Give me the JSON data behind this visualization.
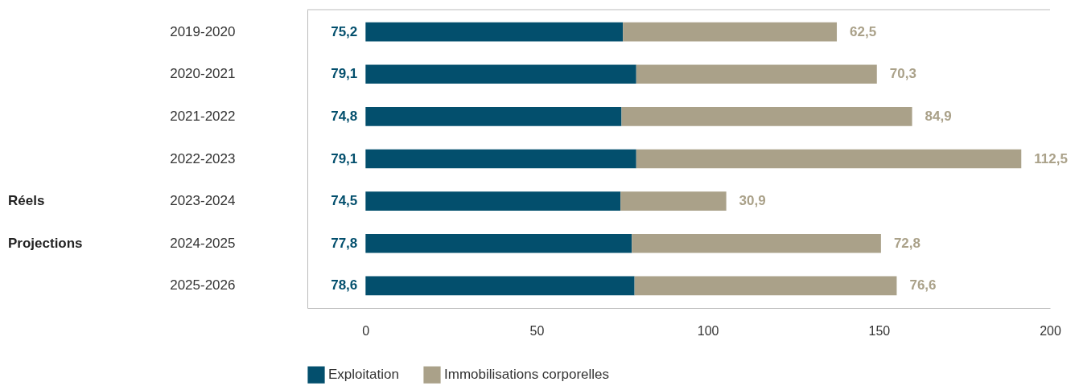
{
  "chart_data": {
    "type": "bar",
    "orientation": "horizontal",
    "stacked": true,
    "legend": "bottom",
    "categories": [
      "2019-2020",
      "2020-2021",
      "2021-2022",
      "2022-2023",
      "2023-2024",
      "2024-2025",
      "2025-2026"
    ],
    "series": [
      {
        "name": "Exploitation",
        "color": "#034f6d",
        "values": [
          75.2,
          79.1,
          74.8,
          79.1,
          74.5,
          77.8,
          78.6
        ],
        "value_labels": [
          "75,2",
          "79,1",
          "74,8",
          "79,1",
          "74,5",
          "77,8",
          "78,6"
        ]
      },
      {
        "name": "Immobilisations corporelles",
        "color": "#aaa189",
        "values": [
          62.5,
          70.3,
          84.9,
          112.5,
          30.9,
          72.8,
          76.6
        ],
        "value_labels": [
          "62,5",
          "70,3",
          "84,9",
          "112,5",
          "30,9",
          "72,8",
          "76,6"
        ]
      }
    ],
    "xlim": [
      -17,
      200
    ],
    "xticks": [
      0,
      50,
      100,
      150,
      200
    ],
    "annotations": [
      "Réels",
      "Projections"
    ]
  }
}
